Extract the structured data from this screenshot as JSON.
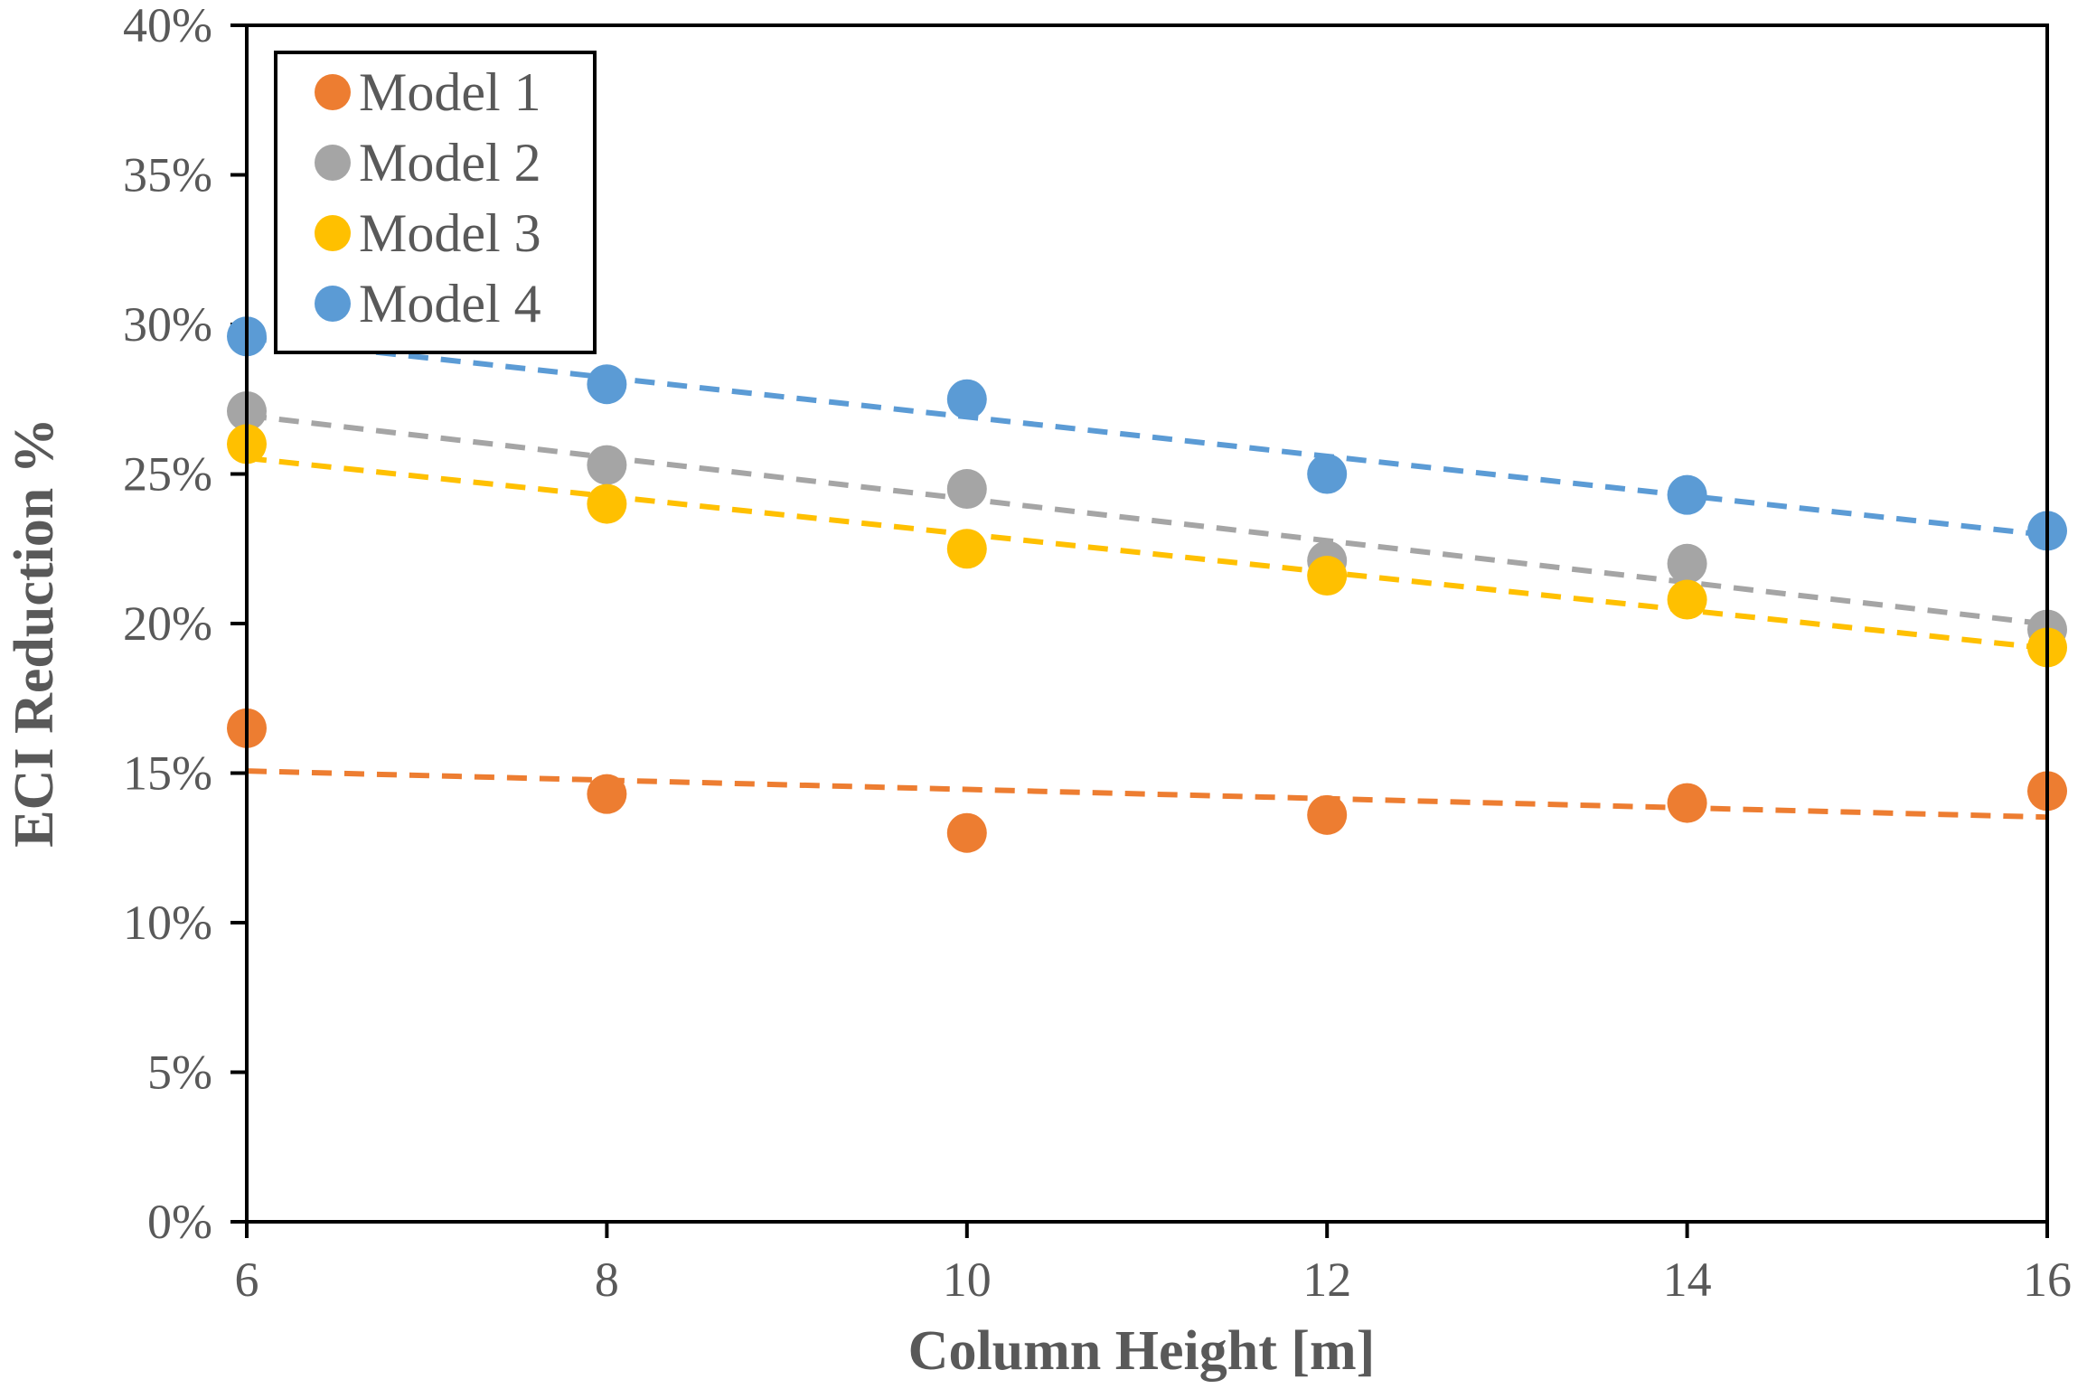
{
  "chart_data": {
    "type": "scatter",
    "title": "",
    "xlabel": "Column Height [m]",
    "ylabel": "ECI Reduction %",
    "xlim": [
      6,
      16
    ],
    "ylim": [
      0,
      0.4
    ],
    "x_ticks": [
      6,
      8,
      10,
      12,
      14,
      16
    ],
    "x_tick_labels": [
      "6",
      "8",
      "10",
      "12",
      "14",
      "16"
    ],
    "y_ticks": [
      0,
      0.05,
      0.1,
      0.15,
      0.2,
      0.25,
      0.3,
      0.35,
      0.4
    ],
    "y_tick_labels": [
      "0%",
      "5%",
      "10%",
      "15%",
      "20%",
      "25%",
      "30%",
      "35%",
      "40%"
    ],
    "grid": false,
    "legend": "top-left",
    "trendline": "linear, dashed",
    "x": [
      6,
      8,
      10,
      12,
      14,
      16
    ],
    "series": [
      {
        "name": "Model 1",
        "color": "#ED7D31",
        "values": [
          0.165,
          0.143,
          0.13,
          0.136,
          0.14,
          0.144
        ]
      },
      {
        "name": "Model 2",
        "color": "#A5A5A5",
        "values": [
          0.271,
          0.253,
          0.245,
          0.221,
          0.22,
          0.198
        ]
      },
      {
        "name": "Model 3",
        "color": "#FFC000",
        "values": [
          0.26,
          0.24,
          0.225,
          0.216,
          0.208,
          0.192
        ]
      },
      {
        "name": "Model 4",
        "color": "#5B9BD5",
        "values": [
          0.296,
          0.28,
          0.275,
          0.25,
          0.243,
          0.231
        ]
      }
    ]
  }
}
